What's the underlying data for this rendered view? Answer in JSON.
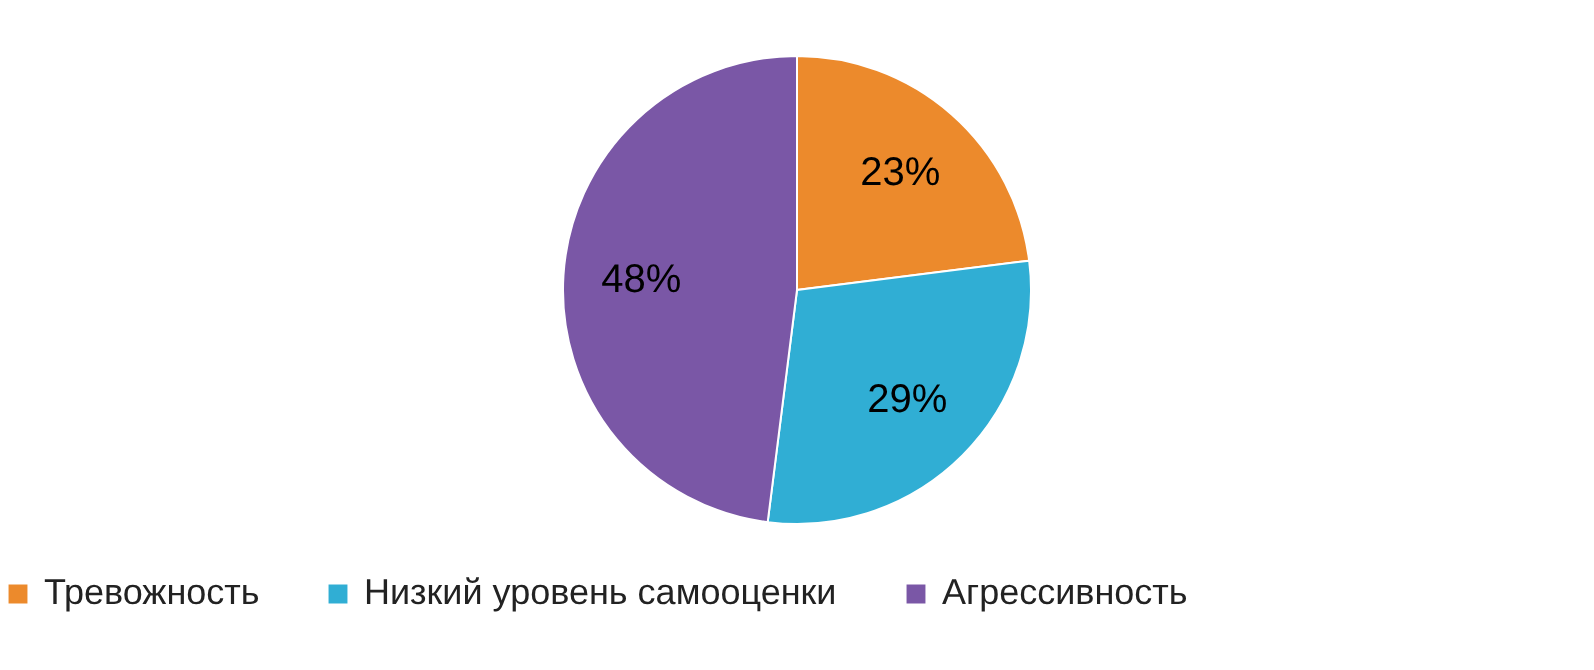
{
  "chart_data": {
    "type": "pie",
    "categories": [
      "Тревожность",
      "Низкий уровень самооценки",
      "Агрессивность"
    ],
    "values": [
      23,
      29,
      48
    ],
    "colors": [
      "#ec8a2c",
      "#30aed4",
      "#7a57a6"
    ],
    "value_labels": [
      "23%",
      "29%",
      "48%"
    ],
    "legend": "bottom"
  }
}
